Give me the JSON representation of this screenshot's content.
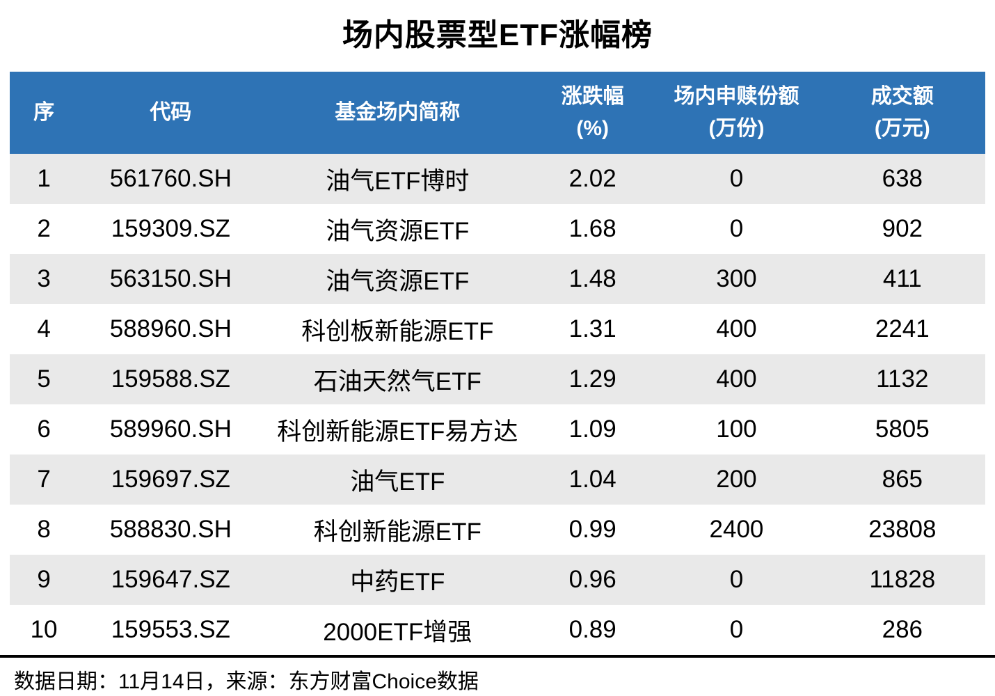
{
  "title": "场内股票型ETF涨幅榜",
  "colors": {
    "header_bg": "#2E73B5",
    "header_text": "#FFFFFF",
    "row_alt_bg": "#E9E9E9",
    "row_bg": "#FFFFFF",
    "body_text": "#000000"
  },
  "table": {
    "column_keys": [
      "index",
      "code",
      "name",
      "change_pct",
      "subscription_shares",
      "turnover"
    ],
    "columns": [
      {
        "title": "序",
        "unit": ""
      },
      {
        "title": "代码",
        "unit": ""
      },
      {
        "title": "基金场内简称",
        "unit": ""
      },
      {
        "title": "涨跌幅",
        "unit": "(%)"
      },
      {
        "title": "场内申赎份额",
        "unit": "(万份)"
      },
      {
        "title": "成交额",
        "unit": "(万元)"
      }
    ],
    "rows": [
      [
        "1",
        "561760.SH",
        "油气ETF博时",
        "2.02",
        "0",
        "638"
      ],
      [
        "2",
        "159309.SZ",
        "油气资源ETF",
        "1.68",
        "0",
        "902"
      ],
      [
        "3",
        "563150.SH",
        "油气资源ETF",
        "1.48",
        "300",
        "411"
      ],
      [
        "4",
        "588960.SH",
        "科创板新能源ETF",
        "1.31",
        "400",
        "2241"
      ],
      [
        "5",
        "159588.SZ",
        "石油天然气ETF",
        "1.29",
        "400",
        "1132"
      ],
      [
        "6",
        "589960.SH",
        "科创新能源ETF易方达",
        "1.09",
        "100",
        "5805"
      ],
      [
        "7",
        "159697.SZ",
        "油气ETF",
        "1.04",
        "200",
        "865"
      ],
      [
        "8",
        "588830.SH",
        "科创新能源ETF",
        "0.99",
        "2400",
        "23808"
      ],
      [
        "9",
        "159647.SZ",
        "中药ETF",
        "0.96",
        "0",
        "11828"
      ],
      [
        "10",
        "159553.SZ",
        "2000ETF增强",
        "0.89",
        "0",
        "286"
      ]
    ]
  },
  "footer": {
    "note": "数据日期：11月14日，来源：东方财富Choice数据"
  },
  "chart_data": {
    "type": "table",
    "title": "场内股票型ETF涨幅榜",
    "columns": [
      "序",
      "代码",
      "基金场内简称",
      "涨跌幅(%)",
      "场内申赎份额(万份)",
      "成交额(万元)"
    ],
    "rows": [
      [
        1,
        "561760.SH",
        "油气ETF博时",
        2.02,
        0,
        638
      ],
      [
        2,
        "159309.SZ",
        "油气资源ETF",
        1.68,
        0,
        902
      ],
      [
        3,
        "563150.SH",
        "油气资源ETF",
        1.48,
        300,
        411
      ],
      [
        4,
        "588960.SH",
        "科创板新能源ETF",
        1.31,
        400,
        2241
      ],
      [
        5,
        "159588.SZ",
        "石油天然气ETF",
        1.29,
        400,
        1132
      ],
      [
        6,
        "589960.SH",
        "科创新能源ETF易方达",
        1.09,
        100,
        5805
      ],
      [
        7,
        "159697.SZ",
        "油气ETF",
        1.04,
        200,
        865
      ],
      [
        8,
        "588830.SH",
        "科创新能源ETF",
        0.99,
        2400,
        23808
      ],
      [
        9,
        "159647.SZ",
        "中药ETF",
        0.96,
        0,
        11828
      ],
      [
        10,
        "159553.SZ",
        "2000ETF增强",
        0.89,
        0,
        286
      ]
    ],
    "source_note": "数据日期：11月14日，来源：东方财富Choice数据"
  }
}
